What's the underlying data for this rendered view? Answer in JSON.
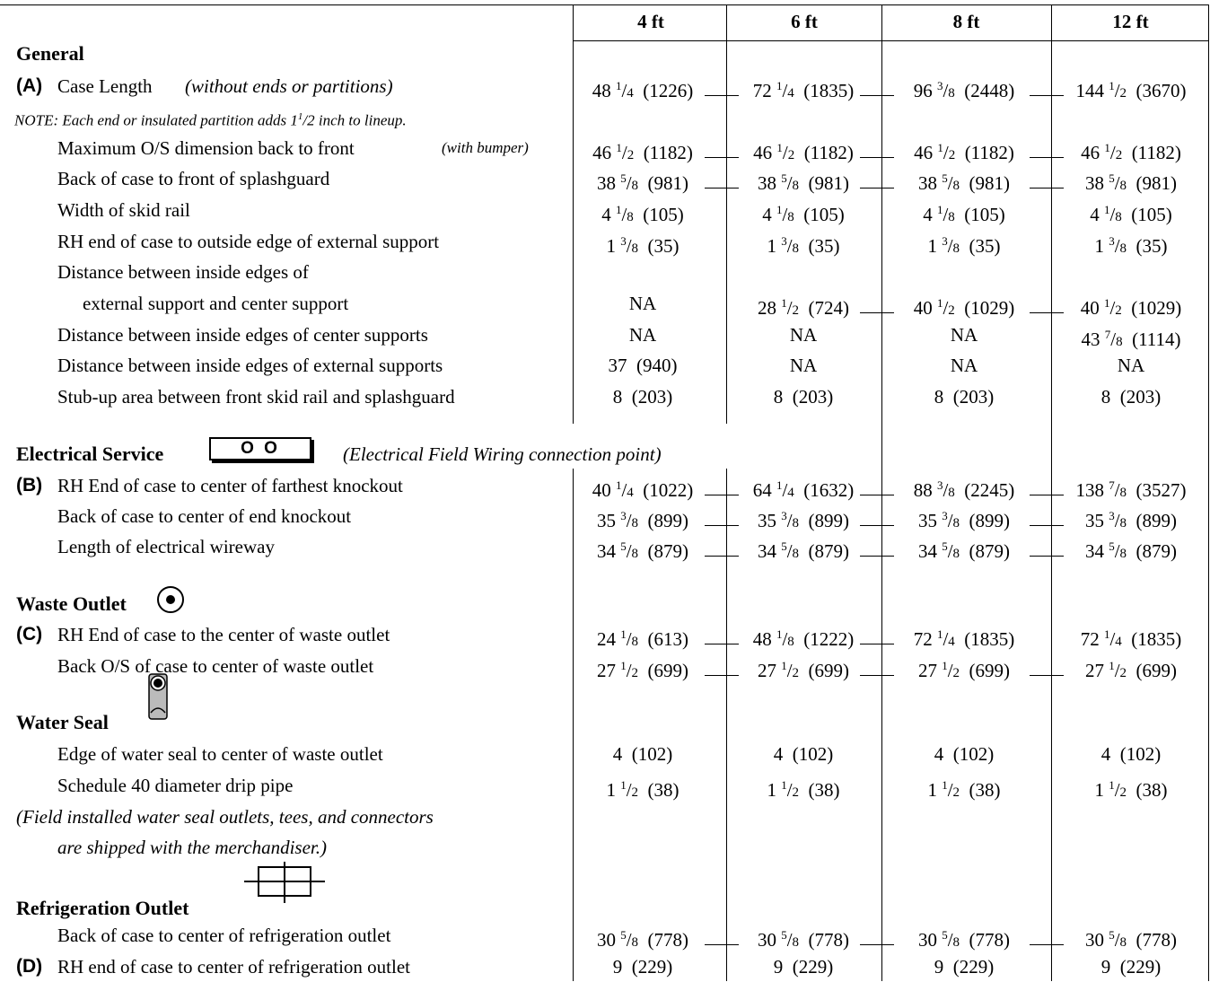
{
  "columns": [
    "4 ft",
    "6 ft",
    "8 ft",
    "12 ft"
  ],
  "sections": {
    "general": "General",
    "electrical": "Electrical Service",
    "electrical_icon_text": "O O",
    "electrical_note": "(Electrical Field Wiring connection point)",
    "waste": "Waste Outlet",
    "water_seal": "Water Seal",
    "refrigeration": "Refrigeration Outlet"
  },
  "notes": {
    "ends_note": "NOTE: Each end or insulated partition adds 1",
    "ends_note_sup": "1",
    "ends_note_frac": "/2",
    "ends_note_tail": " inch to lineup.",
    "water_seal_note_1": "(Field installed water seal outlets, tees, and connectors",
    "water_seal_note_2": "are shipped with the merchandiser.)"
  },
  "rows": [
    {
      "key": "A",
      "label": "Case Length",
      "sub": "(without ends or partitions)",
      "values": [
        "48 1/4  (1226)",
        "72 1/4  (1835)",
        "96 3/8  (2448)",
        "144 1/2  (3670)"
      ]
    },
    {
      "label": "Maximum O/S dimension back to front",
      "sub": "(with bumper)",
      "values": [
        "46 1/2  (1182)",
        "46 1/2  (1182)",
        "46 1/2  (1182)",
        "46 1/2  (1182)"
      ]
    },
    {
      "label": "Back of case to front of splashguard",
      "values": [
        "38 5/8  (981)",
        "38 5/8  (981)",
        "38 5/8  (981)",
        "38 5/8  (981)"
      ]
    },
    {
      "label": "Width of skid rail",
      "values": [
        "4 1/8  (105)",
        "4 1/8  (105)",
        "4 1/8  (105)",
        "4 1/8  (105)"
      ]
    },
    {
      "label": "RH end of case to outside edge of external support",
      "values": [
        "1 3/8  (35)",
        "1 3/8  (35)",
        "1 3/8  (35)",
        "1 3/8  (35)"
      ]
    },
    {
      "label": "Distance between inside edges of"
    },
    {
      "label": "external support and center support",
      "values": [
        "NA",
        "28 1/2  (724)",
        "40 1/2  (1029)",
        "40 1/2  (1029)"
      ]
    },
    {
      "label": "Distance between inside edges of center supports",
      "values": [
        "NA",
        "NA",
        "NA",
        "43 7/8  (1114)"
      ]
    },
    {
      "label": "Distance between inside edges of external supports",
      "values": [
        "37  (940)",
        "NA",
        "NA",
        "NA"
      ]
    },
    {
      "label": "Stub-up area between front skid rail and splashguard",
      "values": [
        "8  (203)",
        "8  (203)",
        "8  (203)",
        "8  (203)"
      ]
    },
    {
      "key": "B",
      "label": "RH End of case to center of farthest knockout",
      "values": [
        "40 1/4  (1022)",
        "64 1/4  (1632)",
        "88 3/8  (2245)",
        "138 7/8  (3527)"
      ]
    },
    {
      "label": "Back of case to center of end knockout",
      "values": [
        "35 3/8  (899)",
        "35 3/8  (899)",
        "35 3/8  (899)",
        "35 3/8  (899)"
      ]
    },
    {
      "label": "Length of electrical wireway",
      "values": [
        "34 5/8  (879)",
        "34 5/8  (879)",
        "34 5/8  (879)",
        "34 5/8  (879)"
      ]
    },
    {
      "key": "C",
      "label": "RH End of case to the center of waste outlet",
      "values": [
        "24 1/8  (613)",
        "48 1/8  (1222)",
        "72 1/4  (1835)",
        "72 1/4  (1835)"
      ]
    },
    {
      "label": "Back O/S of case to center of waste outlet",
      "values": [
        "27 1/2  (699)",
        "27 1/2  (699)",
        "27 1/2  (699)",
        "27 1/2  (699)"
      ]
    },
    {
      "label": "Edge of water seal to center of waste outlet",
      "values": [
        "4  (102)",
        "4  (102)",
        "4  (102)",
        "4  (102)"
      ]
    },
    {
      "label": "Schedule 40 diameter drip pipe",
      "values": [
        "1 1/2  (38)",
        "1 1/2  (38)",
        "1 1/2  (38)",
        "1 1/2  (38)"
      ]
    },
    {
      "label": "Back of case to center of refrigeration outlet",
      "values": [
        "30 5/8  (778)",
        "30 5/8  (778)",
        "30 5/8  (778)",
        "30 5/8  (778)"
      ]
    },
    {
      "key": "D",
      "label": "RH end of case to center of refrigeration outlet",
      "values": [
        "9  (229)",
        "9  (229)",
        "9  (229)",
        "9  (229)"
      ]
    }
  ]
}
